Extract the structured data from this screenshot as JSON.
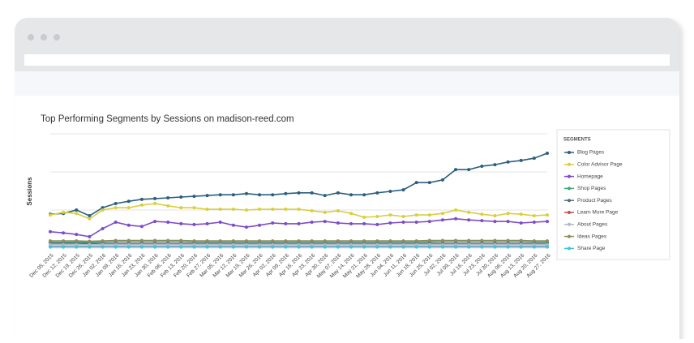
{
  "chart_data": {
    "type": "line",
    "title": "Top Performing Segments by Sessions on madison-reed.com",
    "y_label": "Sessions",
    "legend_title": "SEGMENTS",
    "legend_position": "right",
    "ylim": [
      0,
      30
    ],
    "ygrid": [
      0,
      10,
      20,
      30
    ],
    "categories": [
      "Dec 05, 2015",
      "Dec 12, 2015",
      "Dec 19, 2015",
      "Dec 26, 2015",
      "Jan 02, 2016",
      "Jan 09, 2016",
      "Jan 16, 2016",
      "Jan 23, 2016",
      "Jan 30, 2016",
      "Feb 06, 2016",
      "Feb 13, 2016",
      "Feb 20, 2016",
      "Feb 27, 2016",
      "Mar 05, 2016",
      "Mar 12, 2016",
      "Mar 19, 2016",
      "Mar 26, 2016",
      "Apr 02, 2016",
      "Apr 09, 2016",
      "Apr 16, 2016",
      "Apr 23, 2016",
      "Apr 30, 2016",
      "May 07, 2016",
      "May 14, 2016",
      "May 21, 2016",
      "May 28, 2016",
      "Jun 04, 2016",
      "Jun 11, 2016",
      "Jun 18, 2016",
      "Jun 25, 2016",
      "Jul 02, 2016",
      "Jul 09, 2016",
      "Jul 16, 2016",
      "Jul 23, 2016",
      "Jul 30, 2016",
      "Aug 06, 2016",
      "Aug 13, 2016",
      "Aug 20, 2016",
      "Aug 27, 2016"
    ],
    "series": [
      {
        "name": "Blog Pages",
        "color": "#2a5f7f",
        "values": [
          8.9,
          9.1,
          10.0,
          8.5,
          10.6,
          11.7,
          12.3,
          12.8,
          13.0,
          13.2,
          13.4,
          13.6,
          13.8,
          14.0,
          14.0,
          14.3,
          14.0,
          14.0,
          14.3,
          14.5,
          14.5,
          13.8,
          14.5,
          14.0,
          14.0,
          14.5,
          14.9,
          15.3,
          17.2,
          17.2,
          17.9,
          20.6,
          20.6,
          21.5,
          21.9,
          22.6,
          23.0,
          23.6,
          24.9
        ]
      },
      {
        "name": "Color Advisor Page",
        "color": "#d9cf3c",
        "values": [
          8.7,
          9.4,
          9.1,
          7.7,
          10.0,
          10.6,
          10.6,
          11.3,
          11.7,
          11.1,
          10.6,
          10.6,
          10.2,
          10.2,
          10.2,
          10.0,
          10.2,
          10.2,
          10.2,
          10.2,
          9.8,
          9.4,
          9.8,
          9.1,
          8.1,
          8.3,
          8.7,
          8.3,
          8.7,
          8.7,
          9.1,
          10.0,
          9.4,
          8.9,
          8.5,
          9.1,
          8.9,
          8.5,
          8.7
        ]
      },
      {
        "name": "Homepage",
        "color": "#7d4cc7",
        "values": [
          4.3,
          4.0,
          3.6,
          3.0,
          5.1,
          6.8,
          6.0,
          5.7,
          7.0,
          6.8,
          6.4,
          6.2,
          6.4,
          6.8,
          6.0,
          5.5,
          6.0,
          6.6,
          6.4,
          6.4,
          6.8,
          7.0,
          6.6,
          6.4,
          6.4,
          6.2,
          6.6,
          6.8,
          6.8,
          7.0,
          7.4,
          7.7,
          7.4,
          7.2,
          7.0,
          7.0,
          6.6,
          6.8,
          7.0
        ]
      },
      {
        "name": "Shop Pages",
        "color": "#3aaa7a",
        "values": [
          1.5,
          1.5,
          1.6,
          1.5,
          1.7,
          1.8,
          1.8,
          1.8,
          1.8,
          1.8,
          1.8,
          1.7,
          1.7,
          1.7,
          1.7,
          1.7,
          1.7,
          1.7,
          1.7,
          1.7,
          1.7,
          1.7,
          1.7,
          1.7,
          1.7,
          1.7,
          1.7,
          1.7,
          1.7,
          1.7,
          1.8,
          1.8,
          1.8,
          1.8,
          1.8,
          1.8,
          1.8,
          1.7,
          1.7
        ]
      },
      {
        "name": "Product Pages",
        "color": "#5b6b82",
        "values": [
          1.3,
          1.3,
          1.3,
          1.2,
          1.3,
          1.3,
          1.3,
          1.3,
          1.3,
          1.3,
          1.3,
          1.3,
          1.3,
          1.3,
          1.3,
          1.3,
          1.3,
          1.3,
          1.3,
          1.3,
          1.3,
          1.3,
          1.3,
          1.3,
          1.3,
          1.3,
          1.3,
          1.3,
          1.3,
          1.3,
          1.3,
          1.3,
          1.3,
          1.3,
          1.3,
          1.3,
          1.3,
          1.3,
          1.3
        ]
      },
      {
        "name": "Learn More Page",
        "color": "#c0504d",
        "values": [
          0.4,
          0.4,
          0.4,
          0.4,
          0.4,
          0.4,
          0.4,
          0.4,
          0.4,
          0.4,
          0.4,
          0.4,
          0.4,
          0.4,
          0.4,
          0.4,
          0.4,
          0.4,
          0.4,
          0.4,
          0.4,
          0.4,
          0.4,
          0.4,
          0.4,
          0.4,
          0.4,
          0.4,
          0.4,
          0.4,
          0.4,
          0.4,
          0.4,
          0.4,
          0.4,
          0.4,
          0.4,
          0.4,
          0.4
        ]
      },
      {
        "name": "About Pages",
        "color": "#b0b8c8",
        "values": [
          0.9,
          0.9,
          0.9,
          0.9,
          0.9,
          0.9,
          0.9,
          0.9,
          0.9,
          0.9,
          0.9,
          0.9,
          0.9,
          0.9,
          0.9,
          0.9,
          0.9,
          0.9,
          0.9,
          0.9,
          0.9,
          0.9,
          0.9,
          0.9,
          0.9,
          0.9,
          0.9,
          0.9,
          0.9,
          0.9,
          0.9,
          0.9,
          0.9,
          0.9,
          0.9,
          0.9,
          0.9,
          0.9,
          0.9
        ]
      },
      {
        "name": "Ideas Pages",
        "color": "#8a8f5a",
        "values": [
          1.9,
          1.9,
          1.9,
          1.8,
          1.9,
          2.0,
          2.0,
          2.0,
          2.0,
          2.0,
          2.0,
          1.9,
          1.9,
          1.9,
          1.9,
          1.9,
          1.9,
          1.9,
          1.9,
          1.9,
          1.9,
          1.9,
          1.9,
          1.9,
          1.9,
          1.9,
          1.9,
          1.9,
          1.9,
          2.0,
          2.0,
          2.0,
          2.0,
          2.0,
          2.0,
          2.0,
          2.0,
          1.9,
          1.9
        ]
      },
      {
        "name": "Share Page",
        "color": "#3cc6e0",
        "values": [
          0.3,
          0.3,
          0.3,
          0.3,
          0.3,
          0.3,
          0.3,
          0.3,
          0.3,
          0.3,
          0.3,
          0.3,
          0.3,
          0.3,
          0.3,
          0.3,
          0.3,
          0.3,
          0.3,
          0.3,
          0.3,
          0.3,
          0.3,
          0.3,
          0.3,
          0.3,
          0.3,
          0.3,
          0.3,
          0.3,
          0.3,
          0.3,
          0.3,
          0.3,
          0.3,
          0.3,
          0.3,
          0.3,
          0.3
        ]
      }
    ]
  }
}
